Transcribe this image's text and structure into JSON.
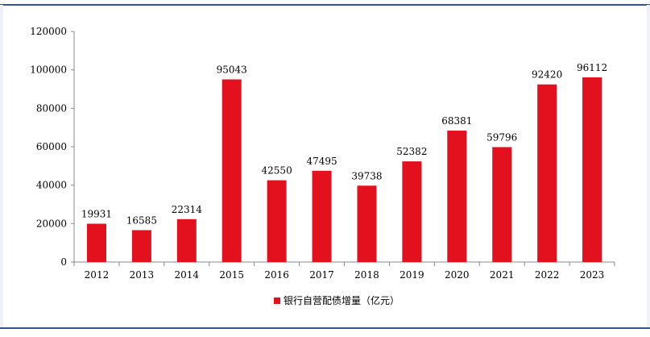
{
  "chart_data": {
    "type": "bar",
    "title": "",
    "xlabel": "",
    "ylabel": "",
    "categories": [
      "2012",
      "2013",
      "2014",
      "2015",
      "2016",
      "2017",
      "2018",
      "2019",
      "2020",
      "2021",
      "2022",
      "2023"
    ],
    "series": [
      {
        "name": "银行自营配债增量（亿元）",
        "color": "#e3101e",
        "values": [
          19931,
          16585,
          22314,
          95043,
          42550,
          47495,
          39738,
          52382,
          68381,
          59796,
          92420,
          96112
        ]
      }
    ],
    "ylim": [
      0,
      120000
    ],
    "yticks": [
      0,
      20000,
      40000,
      60000,
      80000,
      100000,
      120000
    ],
    "grid": false,
    "legend_position": "bottom-center",
    "data_labels": true
  },
  "colors": {
    "frame": "#2f5597",
    "axis": "#888888",
    "text": "#000000"
  }
}
